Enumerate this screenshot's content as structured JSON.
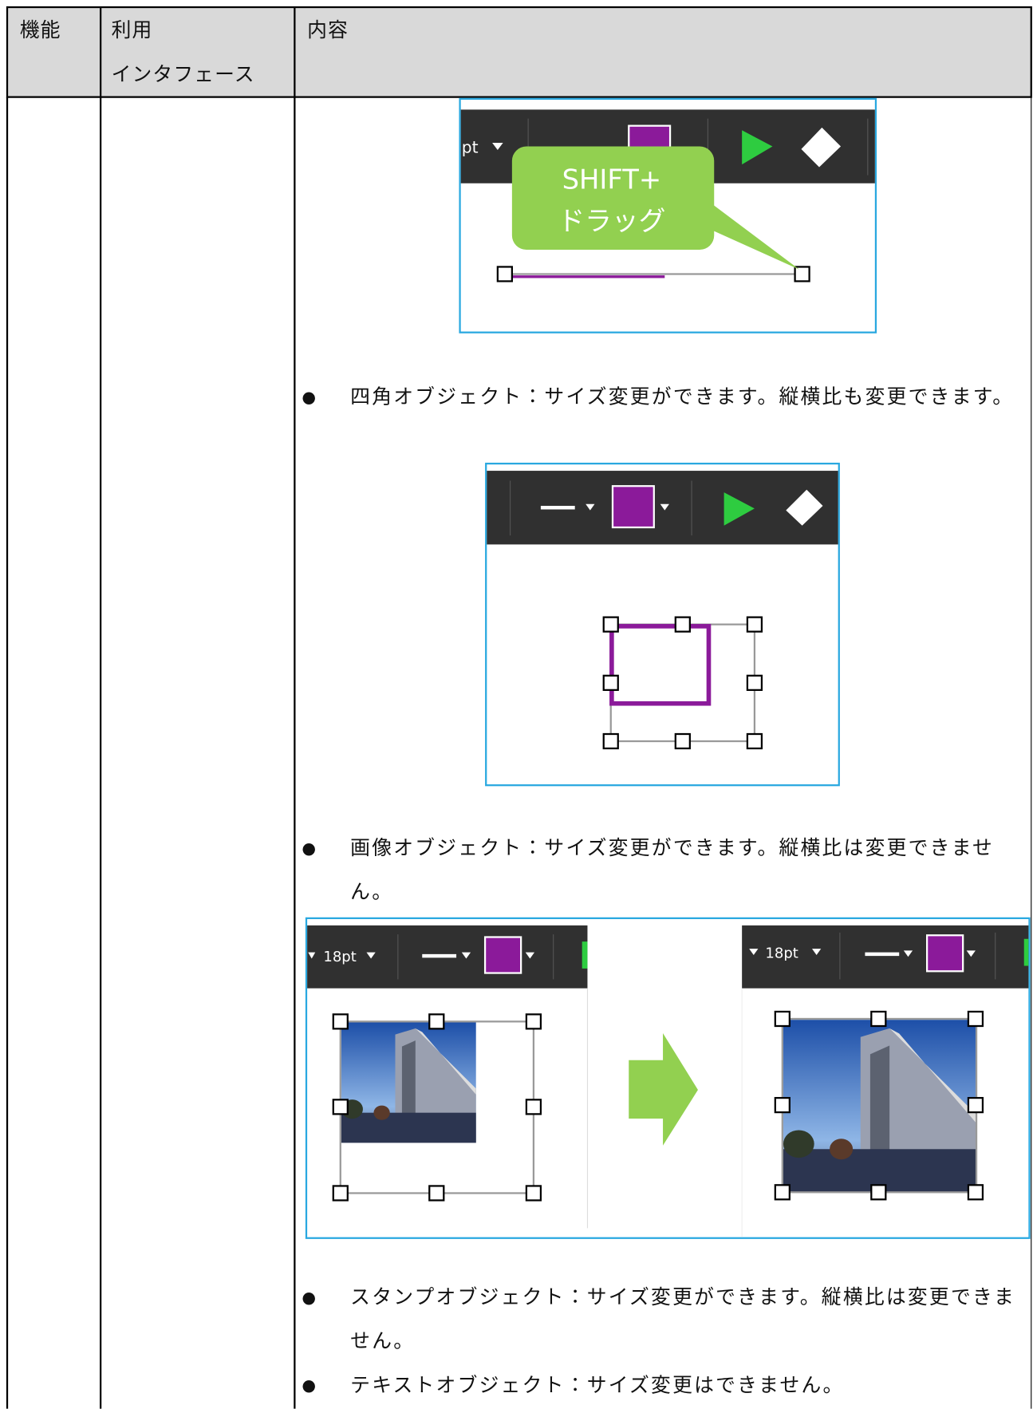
{
  "table": {
    "header": [
      {
        "lines": [
          "機能"
        ]
      },
      {
        "lines": [
          "利用",
          "インタフェース"
        ]
      },
      {
        "lines": [
          "内容"
        ]
      }
    ],
    "content": {
      "figure1": {
        "toolbar_size": "pt",
        "callout": [
          "SHIFT+",
          "ドラッグ"
        ]
      },
      "bullets": [
        "四角オブジェクト：サイズ変更ができます。縦横比も変更できます。",
        "画像オブジェクト：サイズ変更ができます。縦横比は変更できません。",
        "スタンプオブジェクト：サイズ変更ができます。縦横比は変更できません。",
        "テキストオブジェクト：サイズ変更はできません。"
      ],
      "figure3": {
        "toolbar_size": "18pt"
      }
    }
  }
}
